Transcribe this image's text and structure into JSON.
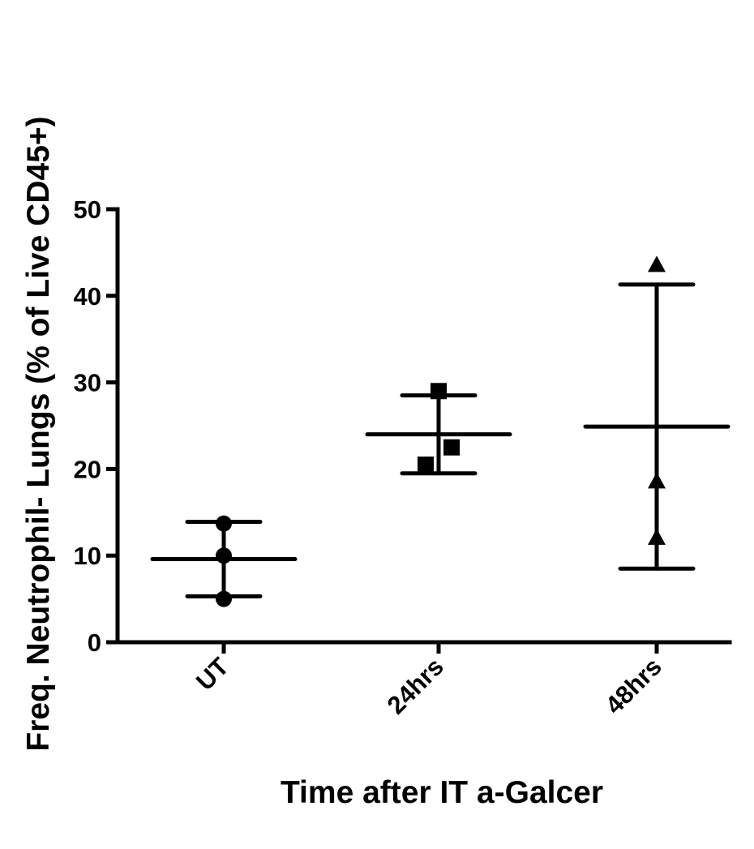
{
  "chart_data": {
    "type": "scatter",
    "ylabel": "Freq. Neutrophil- Lungs (% of Live CD45+)",
    "xlabel": "Time after IT a-Galcer",
    "ylim": [
      0,
      50
    ],
    "yticks": [
      "0",
      "10",
      "20",
      "30",
      "40",
      "50"
    ],
    "categories": [
      "UT",
      "24hrs",
      "48hrs"
    ],
    "grid": false,
    "legend": "none",
    "groups": [
      {
        "category": "UT",
        "marker": "circle",
        "points": [
          5.0,
          10.0,
          13.7
        ],
        "mean": 9.6,
        "sd_low": 5.3,
        "sd_high": 13.9
      },
      {
        "category": "24hrs",
        "marker": "square",
        "points": [
          20.5,
          22.5,
          29.0
        ],
        "mean": 24.0,
        "sd_low": 19.5,
        "sd_high": 28.5
      },
      {
        "category": "48hrs",
        "marker": "triangle",
        "points": [
          12.0,
          18.5,
          43.5
        ],
        "mean": 24.9,
        "sd_low": 8.5,
        "sd_high": 41.3
      }
    ]
  }
}
